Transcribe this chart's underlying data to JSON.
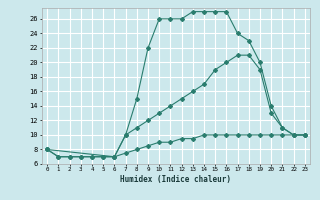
{
  "xlabel": "Humidex (Indice chaleur)",
  "bg_color": "#cce8ec",
  "grid_color": "#ffffff",
  "line_color": "#2a7d6e",
  "xlim": [
    -0.5,
    23.5
  ],
  "ylim": [
    6,
    27.5
  ],
  "xticks": [
    0,
    1,
    2,
    3,
    4,
    5,
    6,
    7,
    8,
    9,
    10,
    11,
    12,
    13,
    14,
    15,
    16,
    17,
    18,
    19,
    20,
    21,
    22,
    23
  ],
  "yticks": [
    6,
    8,
    10,
    12,
    14,
    16,
    18,
    20,
    22,
    24,
    26
  ],
  "curve1_x": [
    0,
    1,
    2,
    3,
    4,
    5,
    6,
    7,
    8,
    9,
    10,
    11,
    12,
    13,
    14,
    15,
    16,
    17,
    18,
    19,
    20,
    21,
    22,
    23
  ],
  "curve1_y": [
    8,
    7,
    7,
    7,
    7,
    7,
    7,
    10,
    15,
    22,
    26,
    26,
    26,
    27,
    27,
    27,
    27,
    24,
    23,
    20,
    14,
    11,
    10,
    10
  ],
  "curve2_x": [
    0,
    6,
    7,
    8,
    9,
    10,
    11,
    12,
    13,
    14,
    15,
    16,
    17,
    18,
    19,
    20,
    21,
    22,
    23
  ],
  "curve2_y": [
    8,
    7,
    10,
    11,
    12,
    13,
    14,
    15,
    16,
    17,
    19,
    20,
    21,
    21,
    19,
    13,
    11,
    10,
    10
  ],
  "curve3_x": [
    0,
    1,
    2,
    3,
    4,
    5,
    6,
    7,
    8,
    9,
    10,
    11,
    12,
    13,
    14,
    15,
    16,
    17,
    18,
    19,
    20,
    21,
    22,
    23
  ],
  "curve3_y": [
    8,
    7,
    7,
    7,
    7,
    7,
    7,
    7.5,
    8,
    8.5,
    9,
    9,
    9.5,
    9.5,
    10,
    10,
    10,
    10,
    10,
    10,
    10,
    10,
    10,
    10
  ]
}
